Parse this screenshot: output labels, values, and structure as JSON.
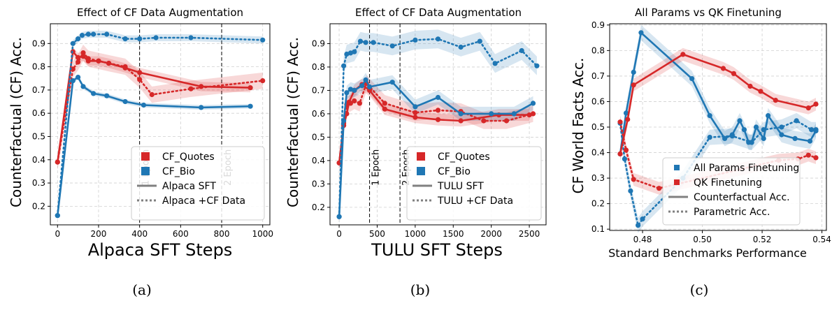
{
  "colors": {
    "red": "#d62728",
    "blue": "#1f77b4",
    "gray": "#808080"
  },
  "captions": [
    "(a)",
    "(b)",
    "(c)"
  ],
  "chart_data": [
    {
      "type": "line",
      "title": "Effect of CF Data Augmentation",
      "xlabel": "Alpaca SFT Steps",
      "ylabel": "Counterfactual (CF) Acc.",
      "xlim": [
        -35,
        1035
      ],
      "ylim": [
        0.12,
        0.985
      ],
      "xticks": [
        0,
        200,
        400,
        600,
        800,
        1000
      ],
      "yticks": [
        0.2,
        0.3,
        0.4,
        0.5,
        0.6,
        0.7,
        0.8,
        0.9
      ],
      "grid": true,
      "vlines": [
        {
          "x": 400,
          "label": "1 Epoch"
        },
        {
          "x": 800,
          "label": "2 Epoch"
        }
      ],
      "legend": {
        "position": "lower right",
        "items": [
          {
            "label": "CF_Quotes",
            "kind": "square",
            "color": "red"
          },
          {
            "label": "CF_Bio",
            "kind": "square",
            "color": "blue"
          },
          {
            "label": "Alpaca SFT",
            "kind": "solid",
            "color": "gray"
          },
          {
            "label": "Alpaca +CF Data",
            "kind": "dotted",
            "color": "gray"
          }
        ]
      },
      "series": [
        {
          "color": "red",
          "style": "solid",
          "x": [
            0,
            75,
            100,
            125,
            150,
            200,
            250,
            330,
            400,
            700,
            940
          ],
          "y": [
            0.39,
            0.865,
            0.84,
            0.845,
            0.825,
            0.825,
            0.815,
            0.795,
            0.775,
            0.715,
            0.71
          ],
          "band": 0.02
        },
        {
          "color": "red",
          "style": "dotted",
          "x": [
            0,
            75,
            100,
            125,
            150,
            200,
            250,
            330,
            400,
            460,
            650,
            1000
          ],
          "y": [
            0.39,
            0.79,
            0.82,
            0.86,
            0.835,
            0.825,
            0.815,
            0.8,
            0.745,
            0.68,
            0.705,
            0.74
          ],
          "band": 0.035
        },
        {
          "color": "blue",
          "style": "solid",
          "x": [
            0,
            75,
            100,
            125,
            175,
            240,
            330,
            420,
            700,
            940
          ],
          "y": [
            0.16,
            0.74,
            0.755,
            0.715,
            0.685,
            0.675,
            0.65,
            0.635,
            0.625,
            0.63
          ],
          "band": 0.01
        },
        {
          "color": "blue",
          "style": "dotted",
          "x": [
            0,
            75,
            100,
            120,
            150,
            175,
            240,
            330,
            400,
            480,
            650,
            1000
          ],
          "y": [
            0.16,
            0.9,
            0.92,
            0.935,
            0.94,
            0.94,
            0.94,
            0.92,
            0.92,
            0.925,
            0.925,
            0.915
          ],
          "band": 0.015
        }
      ]
    },
    {
      "type": "line",
      "title": "Effect of CF Data Augmentation",
      "xlabel": "TULU SFT Steps",
      "ylabel": "Counterfactual (CF) Acc.",
      "xlim": [
        -120,
        2720
      ],
      "ylim": [
        0.125,
        0.985
      ],
      "xticks": [
        0,
        500,
        1000,
        1500,
        2000,
        2500
      ],
      "yticks": [
        0.2,
        0.3,
        0.4,
        0.5,
        0.6,
        0.7,
        0.8,
        0.9
      ],
      "grid": true,
      "vlines": [
        {
          "x": 400,
          "label": "1 Epoch"
        },
        {
          "x": 800,
          "label": "2 Epoch"
        }
      ],
      "legend": {
        "position": "lower right",
        "items": [
          {
            "label": "CF_Quotes",
            "kind": "square",
            "color": "red"
          },
          {
            "label": "CF_Bio",
            "kind": "square",
            "color": "blue"
          },
          {
            "label": "TULU SFT",
            "kind": "solid",
            "color": "gray"
          },
          {
            "label": "TULU +CF Data",
            "kind": "dotted",
            "color": "gray"
          }
        ]
      },
      "series": [
        {
          "color": "red",
          "style": "solid",
          "x": [
            0,
            60,
            100,
            130,
            200,
            300,
            400,
            600,
            1000,
            1300,
            1600,
            2100,
            2500
          ],
          "y": [
            0.39,
            0.55,
            0.6,
            0.65,
            0.7,
            0.725,
            0.7,
            0.62,
            0.585,
            0.575,
            0.57,
            0.595,
            0.595
          ],
          "band": 0.025
        },
        {
          "color": "red",
          "style": "dotted",
          "x": [
            0,
            60,
            100,
            150,
            200,
            270,
            360,
            600,
            1000,
            1300,
            1600,
            1900,
            2200,
            2550
          ],
          "y": [
            0.39,
            0.56,
            0.64,
            0.645,
            0.655,
            0.645,
            0.73,
            0.645,
            0.605,
            0.615,
            0.61,
            0.57,
            0.57,
            0.6
          ],
          "band": 0.035
        },
        {
          "color": "blue",
          "style": "solid",
          "x": [
            0,
            60,
            100,
            150,
            200,
            300,
            350,
            400,
            700,
            1000,
            1300,
            1600,
            2000,
            2300,
            2550
          ],
          "y": [
            0.16,
            0.57,
            0.69,
            0.705,
            0.7,
            0.72,
            0.745,
            0.715,
            0.735,
            0.63,
            0.67,
            0.6,
            0.6,
            0.6,
            0.645
          ],
          "band": 0.03
        },
        {
          "color": "blue",
          "style": "dotted",
          "x": [
            0,
            60,
            100,
            150,
            200,
            280,
            350,
            450,
            700,
            1000,
            1300,
            1600,
            1850,
            2050,
            2400,
            2600
          ],
          "y": [
            0.16,
            0.805,
            0.855,
            0.86,
            0.865,
            0.91,
            0.905,
            0.905,
            0.89,
            0.915,
            0.92,
            0.885,
            0.91,
            0.815,
            0.87,
            0.805
          ],
          "band": 0.04
        }
      ]
    },
    {
      "type": "line",
      "title": "All Params vs QK Finetuning",
      "xlabel": "Standard Benchmarks Performance",
      "ylabel": "CF World Facts Acc.",
      "xlim": [
        0.469,
        0.5415
      ],
      "ylim": [
        0.095,
        0.905
      ],
      "xticks": [
        0.48,
        0.5,
        0.52,
        0.54
      ],
      "xtick_labels": [
        "0.48",
        "0.50",
        "0.52",
        "0.54"
      ],
      "yticks": [
        0.1,
        0.2,
        0.3,
        0.4,
        0.5,
        0.6,
        0.7,
        0.8,
        0.9
      ],
      "grid": true,
      "vlines": [],
      "legend": {
        "position": "lower right",
        "items": [
          {
            "label": "All Params Finetuning",
            "kind": "dot",
            "color": "blue"
          },
          {
            "label": "QK Finetuning",
            "kind": "dot",
            "color": "red"
          },
          {
            "label": "Counterfactual Acc.",
            "kind": "solid",
            "color": "gray"
          },
          {
            "label": "Parametric Acc.",
            "kind": "dotted",
            "color": "gray"
          }
        ]
      },
      "series": [
        {
          "color": "blue",
          "style": "solid",
          "x": [
            0.4725,
            0.4745,
            0.477,
            0.4795,
            0.4965,
            0.5025,
            0.5075,
            0.51,
            0.5125,
            0.514,
            0.5155,
            0.5165,
            0.518,
            0.5205,
            0.522,
            0.5265,
            0.531,
            0.536,
            0.538
          ],
          "y": [
            0.395,
            0.555,
            0.715,
            0.87,
            0.69,
            0.545,
            0.455,
            0.47,
            0.525,
            0.49,
            0.44,
            0.44,
            0.5,
            0.455,
            0.545,
            0.47,
            0.455,
            0.445,
            0.485
          ],
          "band": 0.03
        },
        {
          "color": "blue",
          "style": "dotted",
          "x": [
            0.4725,
            0.474,
            0.476,
            0.4785,
            0.48,
            0.4935,
            0.5025,
            0.51,
            0.5165,
            0.5205,
            0.5265,
            0.5315,
            0.5365,
            0.538
          ],
          "y": [
            0.515,
            0.375,
            0.25,
            0.115,
            0.14,
            0.3,
            0.46,
            0.465,
            0.44,
            0.49,
            0.5,
            0.525,
            0.49,
            0.49
          ],
          "band": 0.03
        },
        {
          "color": "red",
          "style": "solid",
          "x": [
            0.4725,
            0.475,
            0.477,
            0.4935,
            0.507,
            0.5105,
            0.516,
            0.5195,
            0.5245,
            0.5355,
            0.538
          ],
          "y": [
            0.395,
            0.53,
            0.665,
            0.785,
            0.73,
            0.71,
            0.66,
            0.64,
            0.605,
            0.575,
            0.59
          ],
          "band": 0.025
        },
        {
          "color": "red",
          "style": "dotted",
          "x": [
            0.4725,
            0.4745,
            0.477,
            0.4855,
            0.5255,
            0.532,
            0.5355,
            0.538
          ],
          "y": [
            0.52,
            0.41,
            0.295,
            0.26,
            0.37,
            0.375,
            0.39,
            0.38
          ],
          "band": 0.025
        }
      ]
    }
  ]
}
